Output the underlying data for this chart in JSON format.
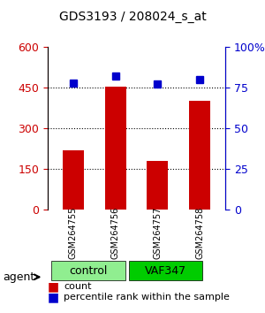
{
  "title": "GDS3193 / 208024_s_at",
  "categories": [
    "GSM264755",
    "GSM264756",
    "GSM264757",
    "GSM264758"
  ],
  "bar_values": [
    220,
    455,
    180,
    400
  ],
  "percentile_values": [
    78,
    82,
    77,
    80
  ],
  "bar_color": "#cc0000",
  "dot_color": "#0000cc",
  "left_ylim": [
    0,
    600
  ],
  "right_ylim": [
    0,
    100
  ],
  "left_yticks": [
    0,
    150,
    300,
    450,
    600
  ],
  "right_yticks": [
    0,
    25,
    50,
    75,
    100
  ],
  "right_yticklabels": [
    "0",
    "25",
    "50",
    "75",
    "100%"
  ],
  "grid_values": [
    150,
    300,
    450
  ],
  "groups": [
    {
      "label": "control",
      "indices": [
        0,
        1
      ],
      "color": "#90ee90"
    },
    {
      "label": "VAF347",
      "indices": [
        2,
        3
      ],
      "color": "#00cc00"
    }
  ],
  "agent_label": "agent",
  "legend_bar_label": "count",
  "legend_dot_label": "percentile rank within the sample",
  "bar_width": 0.5,
  "bg_color": "#ffffff"
}
